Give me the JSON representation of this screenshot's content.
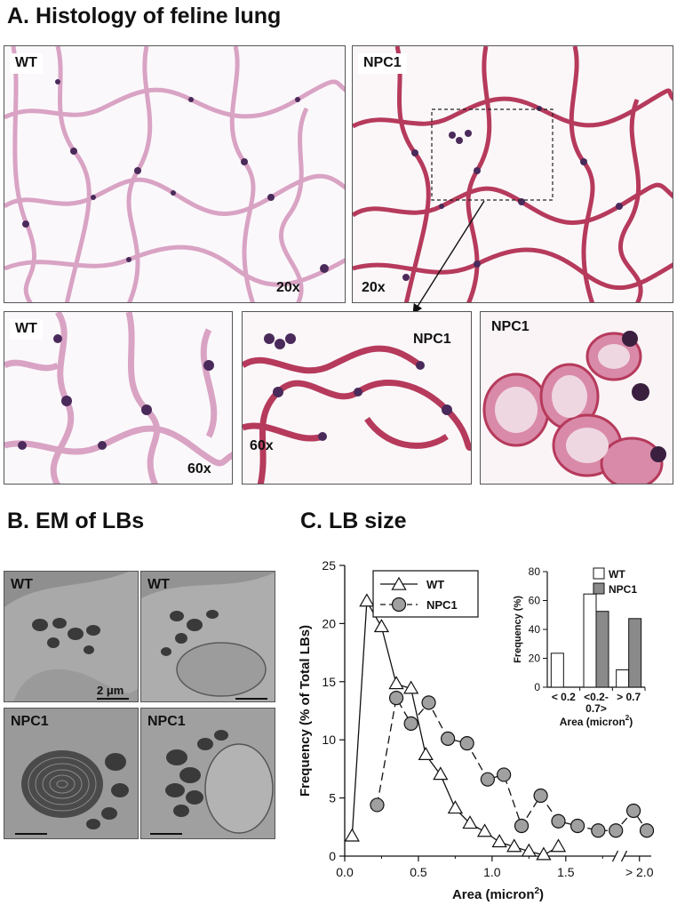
{
  "sectionA": {
    "title": "A.  Histology of feline lung",
    "panels": [
      {
        "label": "WT",
        "mag": "20x"
      },
      {
        "label": "NPC1",
        "mag": "20x"
      },
      {
        "label": "WT",
        "mag": "60x"
      },
      {
        "label": "NPC1",
        "mag": "60x"
      },
      {
        "label": "NPC1",
        "mag": ""
      }
    ]
  },
  "sectionB": {
    "title": "B. EM of LBs",
    "panels": [
      {
        "label": "WT",
        "scale": "2 μm"
      },
      {
        "label": "WT",
        "scale": ""
      },
      {
        "label": "NPC1",
        "scale": ""
      },
      {
        "label": "NPC1",
        "scale": ""
      }
    ]
  },
  "sectionC": {
    "title": "C. LB size"
  },
  "colors": {
    "tissue_pink": "#e6b7cf",
    "nucleus": "#4a2a5a",
    "npc1_red": "#b63a5c",
    "em_bg": "#8c8c8c",
    "npc1_bar": "#8a8a8a",
    "circle_marker": "#a0a0a0"
  },
  "chart_data": [
    {
      "type": "line",
      "xlabel": "Area (micron²)",
      "ylabel": "Frequency (% of Total LBs)",
      "xlim": [
        0,
        2.05
      ],
      "ylim": [
        0,
        25
      ],
      "x_ticks": [
        "0.0",
        "0.5",
        "1.0",
        "1.5",
        "> 2.0"
      ],
      "y_ticks": [
        "0",
        "5",
        "10",
        "15",
        "20",
        "25"
      ],
      "legend_position": "top-left",
      "series": [
        {
          "name": "WT",
          "marker": "triangle",
          "line": "solid",
          "x": [
            0.05,
            0.15,
            0.25,
            0.35,
            0.45,
            0.55,
            0.65,
            0.75,
            0.85,
            0.95,
            1.05,
            1.15,
            1.25,
            1.35,
            1.45
          ],
          "y": [
            1.7,
            21.9,
            19.7,
            14.8,
            14.4,
            8.7,
            7.0,
            4.1,
            2.8,
            2.1,
            1.2,
            0.8,
            0.4,
            0.1,
            0.8
          ]
        },
        {
          "name": "NPC1",
          "marker": "circle",
          "line": "dashed",
          "x": [
            0.22,
            0.35,
            0.45,
            0.57,
            0.7,
            0.83,
            0.97,
            1.08,
            1.2,
            1.33,
            1.45,
            1.58,
            1.72,
            1.84,
            1.96,
            2.05
          ],
          "y": [
            4.4,
            13.6,
            11.4,
            13.2,
            10.1,
            9.7,
            6.6,
            7.0,
            2.6,
            5.2,
            3.0,
            2.6,
            2.2,
            2.2,
            3.9,
            2.2
          ]
        }
      ]
    },
    {
      "type": "bar",
      "xlabel": "Area (micron²)",
      "ylabel": "Frequency (%)",
      "ylim": [
        0,
        80
      ],
      "y_ticks": [
        "0",
        "20",
        "40",
        "60",
        "80"
      ],
      "categories": [
        "< 0.2",
        "<0.2-\n0.7>",
        "> 0.7"
      ],
      "category_lines": [
        [
          "< 0.2"
        ],
        [
          "<0.2-",
          "0.7>"
        ],
        [
          "> 0.7"
        ]
      ],
      "legend_position": "top-right",
      "series": [
        {
          "name": "WT",
          "values": [
            23.5,
            64.5,
            12.0
          ]
        },
        {
          "name": "NPC1",
          "values": [
            0,
            52.5,
            47.5
          ]
        }
      ]
    }
  ]
}
